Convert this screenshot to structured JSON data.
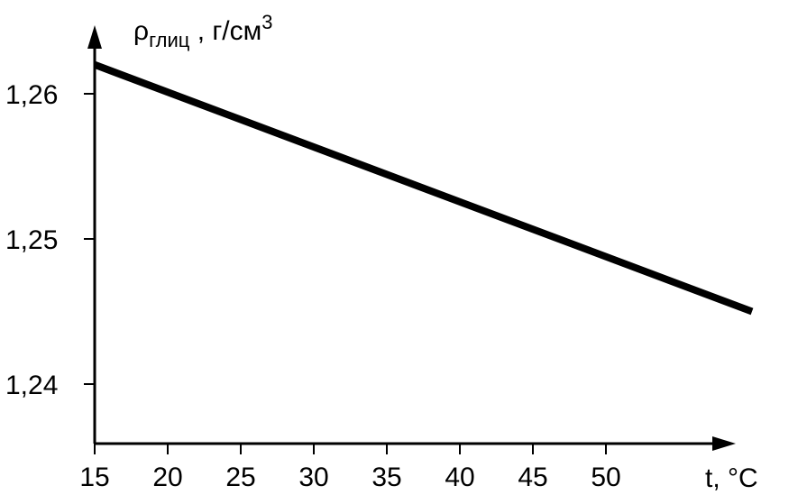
{
  "chart_data": {
    "type": "line",
    "xlabel": "t, °C",
    "ylabel": {
      "symbol": "ρ",
      "subscript": "глиц",
      "unit": " , г/см",
      "superscript": "3"
    },
    "x_ticks": [
      "15",
      "20",
      "25",
      "30",
      "35",
      "40",
      "45",
      "50"
    ],
    "y_ticks": [
      "1,24",
      "1,25",
      "1,26"
    ],
    "xlim": [
      15,
      60
    ],
    "ylim": [
      1.236,
      1.2645
    ],
    "grid": false,
    "series": [
      {
        "x": [
          15,
          60
        ],
        "y": [
          1.262,
          1.245
        ]
      }
    ]
  }
}
